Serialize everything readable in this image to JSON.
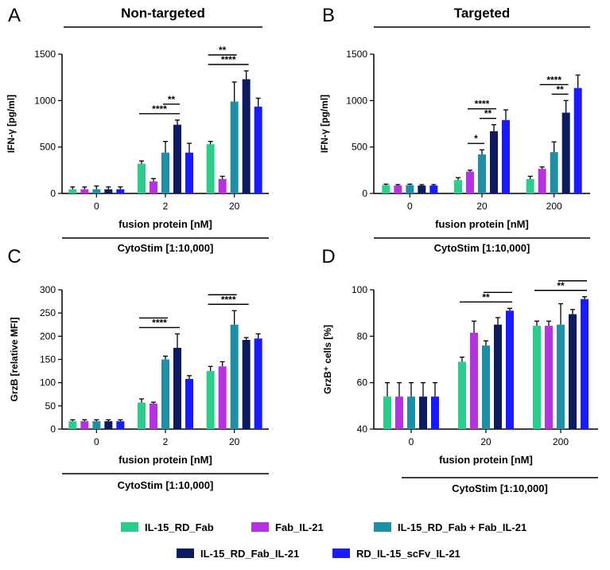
{
  "colors": {
    "il15_rd_fab": "#2bcc8c",
    "fab_il21": "#b532e0",
    "combo": "#1f8fa6",
    "il15_rd_fab_il21": "#0d1b5e",
    "rd_il15_scfv_il21": "#1a1aff",
    "axis": "#000000"
  },
  "legend": {
    "items": [
      {
        "key": "il15_rd_fab",
        "label": "IL-15_RD_Fab"
      },
      {
        "key": "fab_il21",
        "label": "Fab_IL-21"
      },
      {
        "key": "combo",
        "label": "IL-15_RD_Fab + Fab_IL-21"
      },
      {
        "key": "il15_rd_fab_il21",
        "label": "IL-15_RD_Fab_IL-21"
      },
      {
        "key": "rd_il15_scfv_il21",
        "label": "RD_IL-15_scFv_IL-21"
      }
    ]
  },
  "chart_data": [
    {
      "panel": "A",
      "type": "bar",
      "title": "Non-targeted",
      "ylabel": "IFN-γ [pg/ml]",
      "xlabel": "fusion protein [nM]",
      "stim_label": "CytoStim [1:10,000]",
      "ylim": [
        0,
        1500
      ],
      "yticks": [
        0,
        500,
        1000,
        1500
      ],
      "categories": [
        "0",
        "2",
        "20"
      ],
      "series": [
        {
          "key": "il15_rd_fab",
          "values": [
            45,
            320,
            530
          ],
          "errors": [
            25,
            30,
            30
          ]
        },
        {
          "key": "fab_il21",
          "values": [
            45,
            130,
            155
          ],
          "errors": [
            25,
            30,
            30
          ]
        },
        {
          "key": "combo",
          "values": [
            45,
            440,
            990
          ],
          "errors": [
            35,
            120,
            210
          ]
        },
        {
          "key": "il15_rd_fab_il21",
          "values": [
            45,
            740,
            1230
          ],
          "errors": [
            25,
            50,
            90
          ]
        },
        {
          "key": "rd_il15_scfv_il21",
          "values": [
            45,
            440,
            935
          ],
          "errors": [
            25,
            100,
            90
          ]
        }
      ],
      "significance": [
        {
          "group": 1,
          "from": 0,
          "to": 3,
          "label": "****"
        },
        {
          "group": 1,
          "from": 2,
          "to": 3,
          "label": "**"
        },
        {
          "group": 2,
          "from": 0,
          "to": 3,
          "label": "****"
        },
        {
          "group": 2,
          "from": 0,
          "to": 2,
          "label": "**"
        }
      ]
    },
    {
      "panel": "B",
      "type": "bar",
      "title": "Targeted",
      "ylabel": "IFN-γ [pg/ml]",
      "xlabel": "fusion protein [nM]",
      "stim_label": "CytoStim [1:10,000]",
      "ylim": [
        0,
        1500
      ],
      "yticks": [
        0,
        500,
        1000,
        1500
      ],
      "categories": [
        "0",
        "20",
        "200"
      ],
      "series": [
        {
          "key": "il15_rd_fab",
          "values": [
            90,
            145,
            155
          ],
          "errors": [
            10,
            25,
            30
          ]
        },
        {
          "key": "fab_il21",
          "values": [
            85,
            235,
            265
          ],
          "errors": [
            10,
            15,
            20
          ]
        },
        {
          "key": "combo",
          "values": [
            90,
            420,
            445
          ],
          "errors": [
            10,
            50,
            110
          ]
        },
        {
          "key": "il15_rd_fab_il21",
          "values": [
            85,
            670,
            870
          ],
          "errors": [
            10,
            70,
            130
          ]
        },
        {
          "key": "rd_il15_scfv_il21",
          "values": [
            85,
            790,
            1135
          ],
          "errors": [
            10,
            110,
            140
          ]
        }
      ],
      "significance": [
        {
          "group": 1,
          "from": 1,
          "to": 2,
          "label": "*"
        },
        {
          "group": 1,
          "from": 2,
          "to": 3,
          "label": "**"
        },
        {
          "group": 1,
          "from": 1,
          "to": 3,
          "label": "****"
        },
        {
          "group": 2,
          "from": 2,
          "to": 3,
          "label": "**"
        },
        {
          "group": 2,
          "from": 1,
          "to": 3,
          "label": "****"
        }
      ]
    },
    {
      "panel": "C",
      "type": "bar",
      "title": "",
      "ylabel": "GrzB [relative MFI]",
      "xlabel": "fusion protein [nM]",
      "stim_label": "CytoStim [1:10,000]",
      "ylim": [
        0,
        300
      ],
      "yticks": [
        0,
        50,
        100,
        150,
        200,
        250,
        300
      ],
      "categories": [
        "0",
        "2",
        "20"
      ],
      "series": [
        {
          "key": "il15_rd_fab",
          "values": [
            17,
            57,
            125
          ],
          "errors": [
            3,
            8,
            10
          ]
        },
        {
          "key": "fab_il21",
          "values": [
            17,
            55,
            135
          ],
          "errors": [
            3,
            3,
            10
          ]
        },
        {
          "key": "combo",
          "values": [
            17,
            150,
            225
          ],
          "errors": [
            3,
            7,
            30
          ]
        },
        {
          "key": "il15_rd_fab_il21",
          "values": [
            17,
            175,
            192
          ],
          "errors": [
            3,
            30,
            5
          ]
        },
        {
          "key": "rd_il15_scfv_il21",
          "values": [
            17,
            108,
            195
          ],
          "errors": [
            3,
            7,
            10
          ]
        }
      ],
      "significance": [
        {
          "group": 1,
          "from": 0,
          "to": 3,
          "label": "****"
        },
        {
          "group": 1,
          "from": 0,
          "to": 2,
          "label": ""
        },
        {
          "group": 2,
          "from": 0,
          "to": 3,
          "label": "****"
        },
        {
          "group": 2,
          "from": 0,
          "to": 2,
          "label": ""
        }
      ]
    },
    {
      "panel": "D",
      "type": "bar",
      "title": "",
      "ylabel": "GrzB⁺ cells [%]",
      "xlabel": "fusion protein [nM]",
      "stim_label": "CytoStim [1:10,000]",
      "ylim": [
        40,
        100
      ],
      "yticks": [
        40,
        60,
        80,
        100
      ],
      "categories": [
        "0",
        "20",
        "200"
      ],
      "series": [
        {
          "key": "il15_rd_fab",
          "values": [
            54,
            69,
            84.5
          ],
          "errors": [
            6,
            2,
            2
          ]
        },
        {
          "key": "fab_il21",
          "values": [
            54,
            81.5,
            84.5
          ],
          "errors": [
            6,
            5,
            2
          ]
        },
        {
          "key": "combo",
          "values": [
            54,
            76,
            85
          ],
          "errors": [
            6,
            2,
            9
          ]
        },
        {
          "key": "il15_rd_fab_il21",
          "values": [
            54,
            85,
            89.5
          ],
          "errors": [
            6,
            3,
            2
          ]
        },
        {
          "key": "rd_il15_scfv_il21",
          "values": [
            54,
            91,
            96
          ],
          "errors": [
            6,
            1,
            1
          ]
        }
      ],
      "significance": [
        {
          "group": 1,
          "from": 0,
          "to": 4,
          "label": "**"
        },
        {
          "group": 1,
          "from": 2,
          "to": 4,
          "label": ""
        },
        {
          "group": 2,
          "from": 0,
          "to": 4,
          "label": "**"
        },
        {
          "group": 2,
          "from": 2,
          "to": 4,
          "label": ""
        }
      ]
    }
  ]
}
